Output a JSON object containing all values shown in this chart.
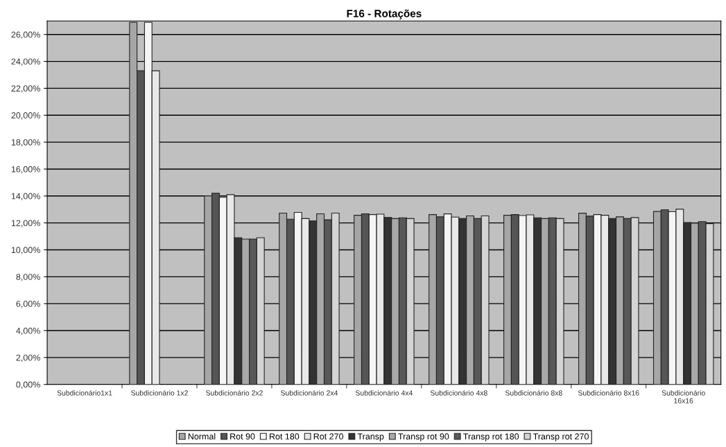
{
  "chart_data": {
    "type": "bar",
    "title": "F16 - Rotações",
    "categories": [
      "Subdicionário1x1",
      "Subdicionário 1x2",
      "Subdicionário 2x2",
      "Subdicionário 2x4",
      "Subdicionário 4x4",
      "Subdicionário 4x8",
      "Subdicionário 8x8",
      "Subdicionário 8x16",
      "Subdicionário\n16x16"
    ],
    "series": [
      {
        "name": "Normal",
        "color": "#a6a6a6",
        "values": [
          null,
          26.9,
          14.0,
          12.73,
          12.57,
          12.62,
          12.57,
          12.72,
          12.85
        ]
      },
      {
        "name": "Rot 90",
        "color": "#555555",
        "values": [
          null,
          23.3,
          14.2,
          12.28,
          12.68,
          12.45,
          12.62,
          12.5,
          12.97
        ]
      },
      {
        "name": "Rot 180",
        "color": "#f5f5f5",
        "values": [
          null,
          26.9,
          13.9,
          12.78,
          12.62,
          12.67,
          12.55,
          12.62,
          12.83
        ]
      },
      {
        "name": "Rot 270",
        "color": "#e8e8e8",
        "values": [
          null,
          23.3,
          14.1,
          12.32,
          12.65,
          12.43,
          12.6,
          12.57,
          13.02
        ]
      },
      {
        "name": "Transp",
        "color": "#333333",
        "values": [
          null,
          null,
          10.9,
          12.15,
          12.4,
          12.32,
          12.38,
          12.32,
          12.03
        ]
      },
      {
        "name": "Transp rot 90",
        "color": "#a8a8a8",
        "values": [
          null,
          null,
          10.8,
          12.68,
          12.32,
          12.52,
          12.32,
          12.45,
          11.98
        ]
      },
      {
        "name": "Transp rot 180",
        "color": "#585858",
        "values": [
          null,
          null,
          10.8,
          12.23,
          12.38,
          12.32,
          12.38,
          12.32,
          12.1
        ]
      },
      {
        "name": "Transp rot 270",
        "color": "#d4d4d4",
        "values": [
          null,
          null,
          10.9,
          12.73,
          12.32,
          12.52,
          12.32,
          12.4,
          11.95
        ]
      }
    ],
    "ylim": [
      0,
      27
    ],
    "yticks": [
      {
        "value": 0,
        "label": "0,00%"
      },
      {
        "value": 2,
        "label": "2,00%"
      },
      {
        "value": 4,
        "label": "4,00%"
      },
      {
        "value": 6,
        "label": "6,00%"
      },
      {
        "value": 8,
        "label": "8,00%"
      },
      {
        "value": 10,
        "label": "10,00%"
      },
      {
        "value": 12,
        "label": "12,00%"
      },
      {
        "value": 14,
        "label": "14,00%"
      },
      {
        "value": 16,
        "label": "16,00%"
      },
      {
        "value": 18,
        "label": "18,00%"
      },
      {
        "value": 20,
        "label": "20,00%"
      },
      {
        "value": 22,
        "label": "22,00%"
      },
      {
        "value": 24,
        "label": "24,00%"
      },
      {
        "value": 26,
        "label": "26,00%"
      }
    ],
    "grid": "y",
    "legend": "bottom"
  }
}
